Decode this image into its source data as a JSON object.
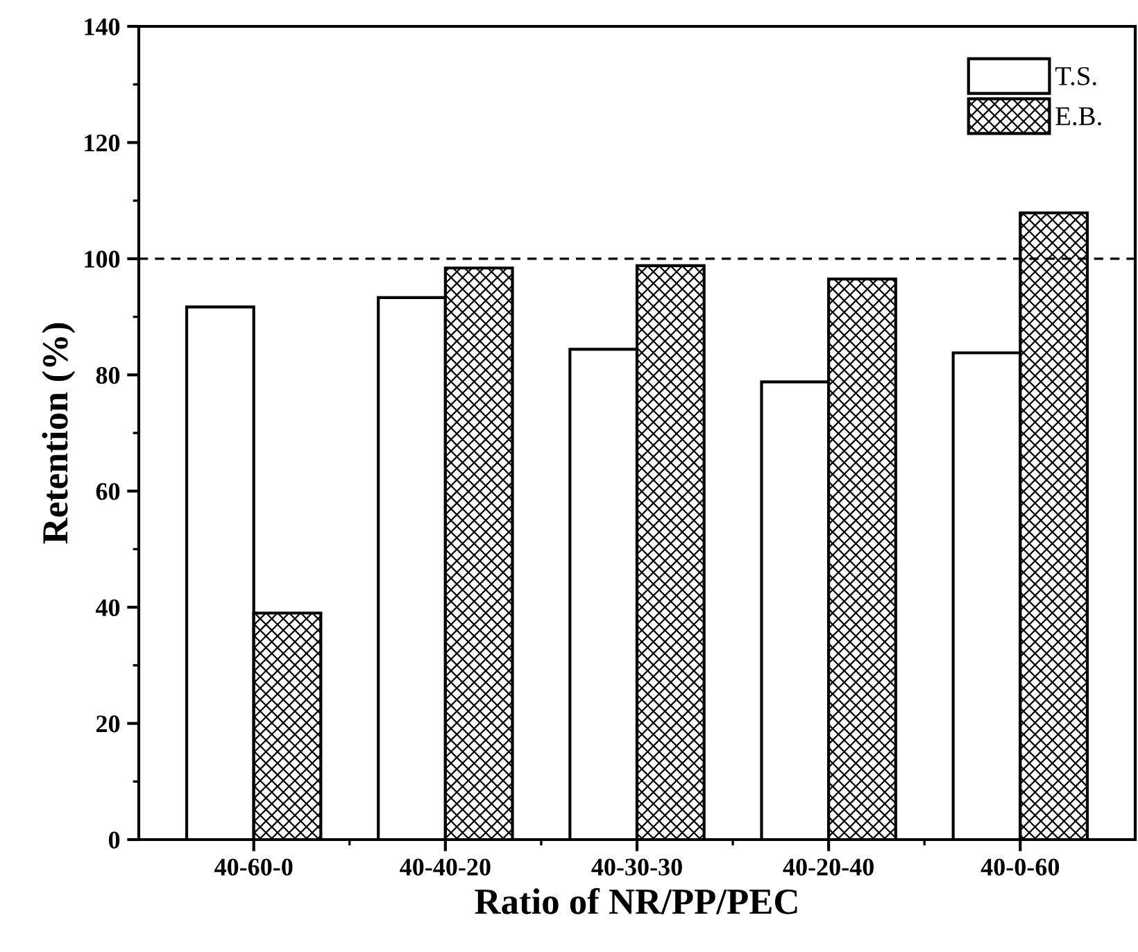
{
  "chart_data": {
    "type": "bar",
    "xlabel": "Ratio of NR/PP/PEC",
    "ylabel": "Retention (%)",
    "categories": [
      "40-60-0",
      "40-40-20",
      "40-30-30",
      "40-20-40",
      "40-0-60"
    ],
    "series": [
      {
        "name": "T.S.",
        "color": "#ffffff",
        "values": [
          91.7,
          93.3,
          84.4,
          78.8,
          83.8
        ]
      },
      {
        "name": "E.B.",
        "color": "#000000",
        "values": [
          39,
          98.4,
          98.8,
          96.5,
          107.9
        ]
      }
    ],
    "ylim": [
      0,
      140
    ],
    "yticks": [
      0,
      20,
      40,
      60,
      80,
      100,
      120,
      140
    ],
    "ref_lines": [
      {
        "axis": "y",
        "value": 100,
        "line_style": "dashed",
        "color": "#000000"
      }
    ],
    "grid": false,
    "legend": "top right"
  }
}
